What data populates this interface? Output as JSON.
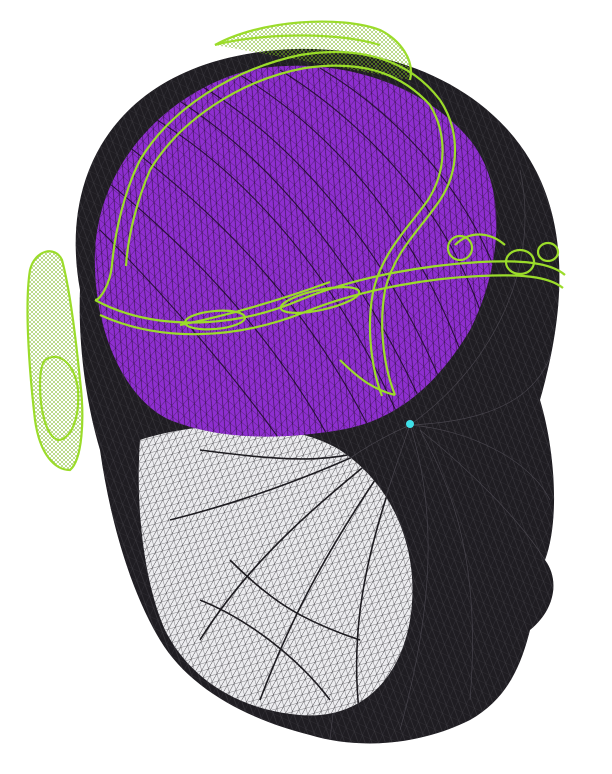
{
  "scene": {
    "background": "#ffffff",
    "head_mesh_color": "#1f1d22",
    "face_mesh_light": "#e9e9ec",
    "brain_region_color": "#8e2fd0",
    "headset_color": "#9bdc2a",
    "marker_color": "#3fe0e8",
    "icons": [
      "wireframe-head-icon",
      "brain-region-icon",
      "eeg-headset-icon",
      "electrode-marker-icon"
    ]
  }
}
